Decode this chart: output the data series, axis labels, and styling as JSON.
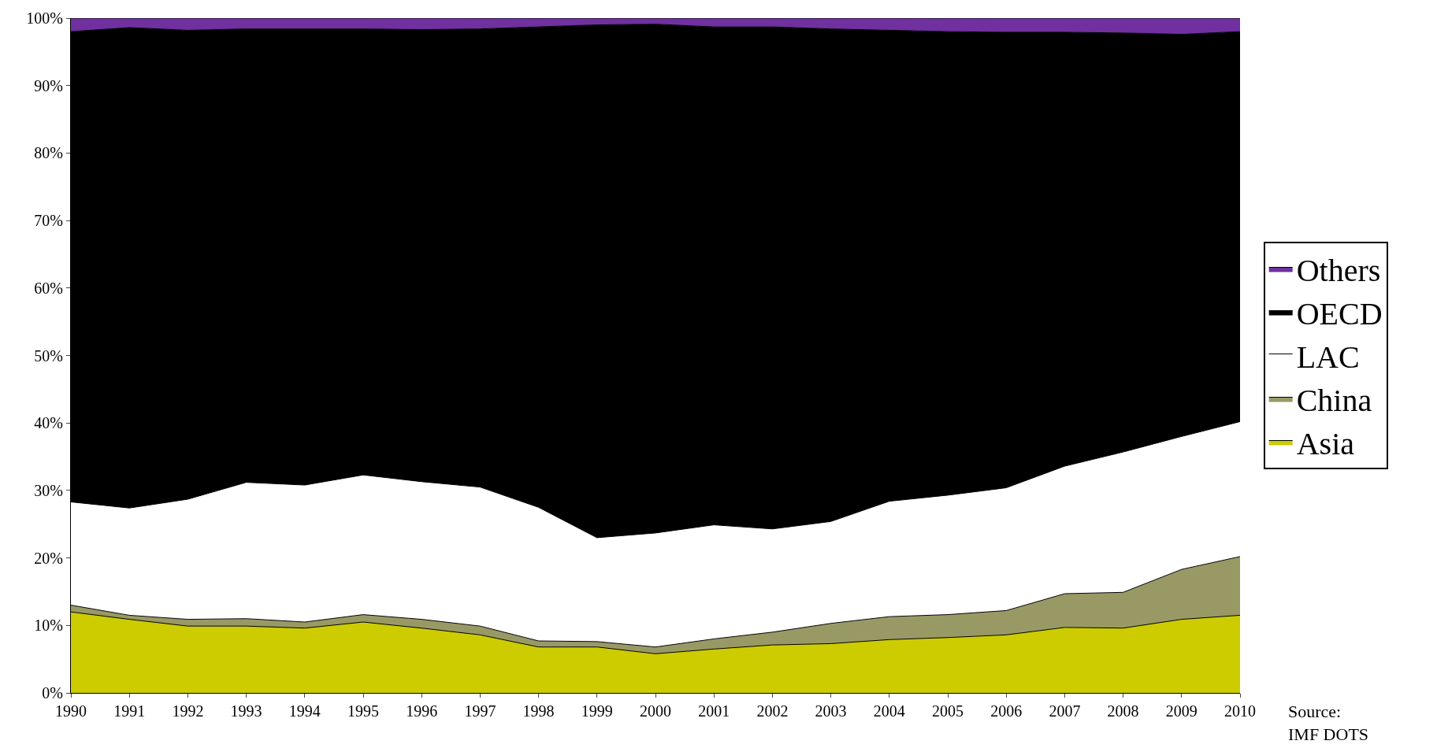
{
  "chart_data": {
    "type": "area",
    "stacked": true,
    "x": [
      1990,
      1991,
      1992,
      1993,
      1994,
      1995,
      1996,
      1997,
      1998,
      1999,
      2000,
      2001,
      2002,
      2003,
      2004,
      2005,
      2006,
      2007,
      2008,
      2009,
      2010
    ],
    "series": [
      {
        "name": "Asia",
        "color": "#cccc00",
        "values": [
          12.0,
          10.9,
          9.9,
          9.9,
          9.6,
          10.5,
          9.6,
          8.6,
          6.8,
          6.8,
          5.8,
          6.5,
          7.1,
          7.3,
          7.9,
          8.2,
          8.6,
          9.7,
          9.6,
          10.9,
          11.5
        ]
      },
      {
        "name": "China",
        "color": "#999966",
        "values": [
          1.0,
          0.6,
          1.0,
          1.1,
          0.9,
          1.1,
          1.3,
          1.3,
          0.9,
          0.8,
          1.0,
          1.5,
          1.9,
          3.0,
          3.4,
          3.4,
          3.6,
          5.0,
          5.3,
          7.4,
          8.7
        ]
      },
      {
        "name": "LAC",
        "color": "#ffffff",
        "values": [
          15.3,
          15.9,
          17.8,
          20.2,
          20.3,
          20.7,
          20.4,
          20.6,
          19.8,
          15.4,
          16.9,
          16.9,
          15.3,
          15.1,
          17.1,
          17.7,
          18.2,
          18.9,
          20.8,
          19.7,
          20.0
        ]
      },
      {
        "name": "OECD",
        "color": "#000000",
        "values": [
          69.7,
          71.2,
          69.5,
          67.2,
          67.6,
          66.1,
          67.0,
          67.9,
          71.2,
          76.0,
          75.4,
          73.8,
          74.4,
          73.0,
          69.8,
          68.7,
          67.5,
          64.3,
          62.1,
          59.6,
          57.8
        ]
      },
      {
        "name": "Others",
        "color": "#7030a0",
        "values": [
          2.0,
          1.4,
          1.8,
          1.6,
          1.6,
          1.6,
          1.7,
          1.6,
          1.3,
          1.0,
          0.9,
          1.3,
          1.3,
          1.6,
          1.8,
          2.0,
          2.1,
          2.1,
          2.2,
          2.4,
          2.0
        ]
      }
    ],
    "xlim": [
      1990,
      2010
    ],
    "xticks": [
      1990,
      1991,
      1992,
      1993,
      1994,
      1995,
      1996,
      1997,
      1998,
      1999,
      2000,
      2001,
      2002,
      2003,
      2004,
      2005,
      2006,
      2007,
      2008,
      2009,
      2010
    ],
    "ylim": [
      0,
      100
    ],
    "yticks": [
      {
        "value": 0,
        "label": "0%"
      },
      {
        "value": 10,
        "label": "10%"
      },
      {
        "value": 20,
        "label": "20%"
      },
      {
        "value": 30,
        "label": "30%"
      },
      {
        "value": 40,
        "label": "40%"
      },
      {
        "value": 50,
        "label": "50%"
      },
      {
        "value": 60,
        "label": "60%"
      },
      {
        "value": 70,
        "label": "70%"
      },
      {
        "value": 80,
        "label": "80%"
      },
      {
        "value": 90,
        "label": "90%"
      },
      {
        "value": 100,
        "label": "100%"
      }
    ],
    "legend": "right",
    "annotations": [
      "Source:\nIMF DOTS"
    ]
  }
}
